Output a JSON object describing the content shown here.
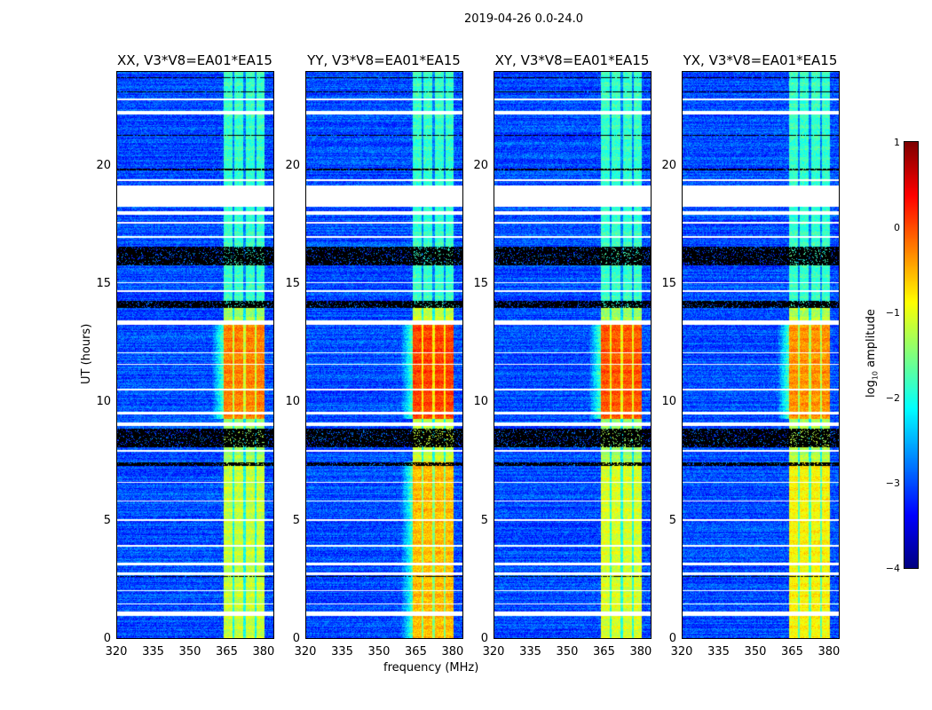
{
  "figure_title": "2019-04-26 0.0-24.0",
  "chart_data": {
    "type": "heatmap",
    "xlabel": "frequency (MHz)",
    "ylabel": "UT (hours)",
    "xlim": [
      320,
      384
    ],
    "ylim": [
      0,
      24
    ],
    "xticks": [
      "320",
      "335",
      "350",
      "365",
      "380"
    ],
    "xtick_values": [
      320,
      335,
      350,
      365,
      380
    ],
    "yticks": [
      "0",
      "5",
      "10",
      "15",
      "20"
    ],
    "ytick_values": [
      0,
      5,
      10,
      15,
      20
    ],
    "panels": [
      {
        "title": "XX, V3*V8=EA01*EA15",
        "rfi_level_day": -0.3,
        "rfi_level_base": -1.4,
        "rfi_level_early": -1.2
      },
      {
        "title": "YY, V3*V8=EA01*EA15",
        "rfi_level_day": 0.0,
        "rfi_level_base": -1.2,
        "rfi_level_early": -0.6
      },
      {
        "title": "XY, V3*V8=EA01*EA15",
        "rfi_level_day": -0.1,
        "rfi_level_base": -1.4,
        "rfi_level_early": -1.1
      },
      {
        "title": "YX, V3*V8=EA01*EA15",
        "rfi_level_day": -0.4,
        "rfi_level_base": -1.3,
        "rfi_level_early": -0.9
      }
    ],
    "background_level": -3.0,
    "rfi_band_mhz": [
      363.5,
      380
    ],
    "rfi_gap_lines_mhz": [
      367.5,
      372,
      376.5
    ],
    "strong_rfi_hours": [
      9.3,
      13.3
    ],
    "early_rfi_hours": [
      0,
      7.5
    ],
    "flagged_white_hours": [
      [
        0.95,
        1.15
      ],
      [
        1.45,
        1.5
      ],
      [
        2.0,
        2.05
      ],
      [
        2.7,
        2.8
      ],
      [
        3.1,
        3.2
      ],
      [
        3.9,
        3.95
      ],
      [
        5.0,
        5.05
      ],
      [
        5.8,
        5.85
      ],
      [
        6.6,
        6.65
      ],
      [
        7.9,
        8.0
      ],
      [
        9.0,
        9.15
      ],
      [
        9.5,
        9.6
      ],
      [
        10.5,
        10.6
      ],
      [
        11.6,
        11.65
      ],
      [
        12.1,
        12.15
      ],
      [
        13.3,
        13.5
      ],
      [
        14.7,
        14.75
      ],
      [
        15.05,
        15.1
      ],
      [
        17.0,
        17.05
      ],
      [
        17.6,
        17.65
      ],
      [
        17.95,
        18.1
      ],
      [
        18.3,
        19.2
      ],
      [
        19.4,
        19.45
      ],
      [
        22.2,
        22.35
      ],
      [
        22.8,
        22.9
      ]
    ],
    "flagged_black_hours": [
      [
        15.8,
        16.6
      ],
      [
        8.1,
        8.9
      ],
      [
        14.0,
        14.3
      ],
      [
        7.3,
        7.45
      ],
      [
        2.6,
        2.65
      ],
      [
        19.85,
        19.9
      ],
      [
        21.3,
        21.35
      ],
      [
        23.15,
        23.2
      ],
      [
        23.75,
        23.8
      ]
    ],
    "colorbar": {
      "label": "log10 amplitude",
      "label_main": "log",
      "label_sub": "10",
      "label_rest": " amplitude",
      "range": [
        -4,
        1
      ],
      "ticks": [
        "1",
        "0",
        "−1",
        "−2",
        "−3",
        "−4"
      ],
      "tick_values": [
        1,
        0,
        -1,
        -2,
        -3,
        -4
      ],
      "colormap": "jet"
    }
  }
}
